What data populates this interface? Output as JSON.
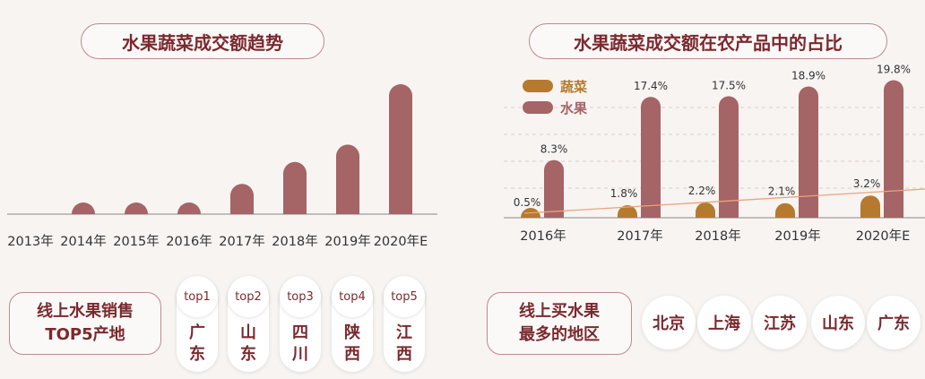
{
  "left_chart": {
    "title": "水果蔬菜成交额趋势",
    "chart_data": {
      "type": "bar",
      "categories": [
        "2013年",
        "2014年",
        "2015年",
        "2016年",
        "2017年",
        "2018年",
        "2019年",
        "2020年E"
      ],
      "values": [
        0,
        1.5,
        1.5,
        4,
        16.5,
        28.5,
        38,
        71
      ],
      "title": "水果蔬菜成交额趋势",
      "xlabel": "",
      "ylabel": "",
      "colors": {
        "bar": "#a56466"
      }
    }
  },
  "right_chart": {
    "title": "水果蔬菜成交额在农产品中的占比",
    "chart_data": {
      "type": "bar",
      "categories": [
        "2016年",
        "2017年",
        "2018年",
        "2019年",
        "2020年E"
      ],
      "series": [
        {
          "name": "蔬菜",
          "values": [
            0.5,
            1.8,
            2.2,
            2.1,
            3.2
          ],
          "labels": [
            "0.5%",
            "1.8%",
            "2.2%",
            "2.1%",
            "3.2%"
          ],
          "color": "#b57a2e"
        },
        {
          "name": "水果",
          "values": [
            8.3,
            17.4,
            17.5,
            18.9,
            19.8
          ],
          "labels": [
            "8.3%",
            "17.4%",
            "17.5%",
            "18.9%",
            "19.8%"
          ],
          "color": "#a56466"
        }
      ],
      "legend": "top-left",
      "grid": "dashed",
      "trend_line_color": "#e9a57a"
    }
  },
  "bottom_left": {
    "label_lines": [
      "线上水果销售",
      "TOP5产地"
    ],
    "tops": [
      {
        "rank": "top1",
        "city": [
          "广",
          "东"
        ]
      },
      {
        "rank": "top2",
        "city": [
          "山",
          "东"
        ]
      },
      {
        "rank": "top3",
        "city": [
          "四",
          "川"
        ]
      },
      {
        "rank": "top4",
        "city": [
          "陕",
          "西"
        ]
      },
      {
        "rank": "top5",
        "city": [
          "江",
          "西"
        ]
      }
    ]
  },
  "bottom_right": {
    "label_lines": [
      "线上买水果",
      "最多的地区"
    ],
    "cities": [
      "北京",
      "上海",
      "江苏",
      "山东",
      "广东"
    ]
  }
}
